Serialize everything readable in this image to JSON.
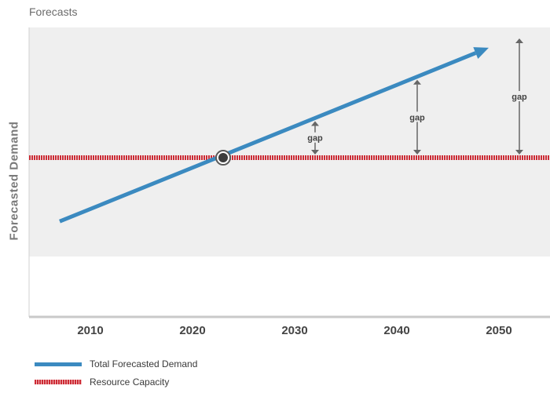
{
  "chart_data": {
    "type": "line",
    "title": "Forecasts",
    "xlabel": "",
    "ylabel": "Forecasted Demand",
    "x_ticks": [
      2010,
      2020,
      2030,
      2040,
      2050
    ],
    "xlim": [
      2004,
      2055
    ],
    "ylim": [
      0,
      100
    ],
    "grid": false,
    "legend_position": "bottom-left",
    "series": [
      {
        "name": "Total Forecasted Demand",
        "x": [
          2007,
          2049
        ],
        "y": [
          33,
          93
        ],
        "color": "#3b8ac0"
      },
      {
        "name": "Resource Capacity",
        "x": [
          2004,
          2055
        ],
        "y": [
          55,
          55
        ],
        "color": "#cc2b35"
      }
    ],
    "intersection": {
      "x": 2023,
      "y": 55
    },
    "annotations": [
      {
        "text": "gap",
        "x": 2032
      },
      {
        "text": "gap",
        "x": 2042
      },
      {
        "text": "gap",
        "x": 2052
      }
    ]
  }
}
